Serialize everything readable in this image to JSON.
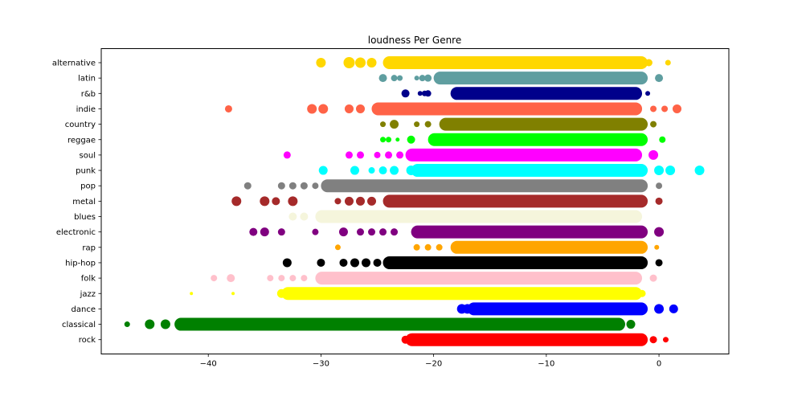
{
  "chart_data": {
    "type": "scatter",
    "title": "loudness Per Genre",
    "xlabel": "",
    "ylabel": "",
    "xlim": [
      -49.5,
      6.2
    ],
    "xticks": [
      -40,
      -30,
      -20,
      -10,
      0
    ],
    "xtick_labels": [
      "−40",
      "−30",
      "−20",
      "−10",
      "0"
    ],
    "grid": false,
    "categories": [
      "alternative",
      "latin",
      "r&b",
      "indie",
      "country",
      "reggae",
      "soul",
      "punk",
      "pop",
      "metal",
      "blues",
      "electronic",
      "rap",
      "hip-hop",
      "folk",
      "jazz",
      "dance",
      "classical",
      "rock"
    ],
    "series": [
      {
        "category": "alternative",
        "color": "#ffd700",
        "band": [
          -24.5,
          -1.0
        ],
        "points": [
          [
            -30.0,
            12
          ],
          [
            -27.5,
            14
          ],
          [
            -26.5,
            13
          ],
          [
            -25.5,
            12
          ],
          [
            -24.0,
            12
          ],
          [
            -23.0,
            11
          ],
          [
            -22.0,
            11
          ],
          [
            -21.0,
            11
          ],
          [
            -20.5,
            10
          ],
          [
            -20.0,
            10
          ],
          [
            -0.9,
            9
          ],
          [
            0.8,
            7
          ]
        ]
      },
      {
        "category": "latin",
        "color": "#5f9ea0",
        "band": [
          -20.0,
          -1.0
        ],
        "points": [
          [
            -24.5,
            10
          ],
          [
            -23.5,
            8
          ],
          [
            -23.0,
            7
          ],
          [
            -21.5,
            6
          ],
          [
            -21.0,
            8
          ],
          [
            -20.5,
            9
          ],
          [
            0.0,
            10
          ]
        ]
      },
      {
        "category": "r&b",
        "color": "#00008b",
        "band": [
          -18.5,
          -1.5
        ],
        "points": [
          [
            -22.5,
            10
          ],
          [
            -21.2,
            6
          ],
          [
            -20.8,
            7
          ],
          [
            -20.5,
            8
          ],
          [
            -1.0,
            6
          ]
        ]
      },
      {
        "category": "indie",
        "color": "#ff6347",
        "band": [
          -25.5,
          -1.5
        ],
        "points": [
          [
            -38.2,
            9
          ],
          [
            -30.8,
            12
          ],
          [
            -29.8,
            12
          ],
          [
            -27.5,
            11
          ],
          [
            -26.5,
            11
          ],
          [
            -0.5,
            8
          ],
          [
            0.5,
            8
          ],
          [
            1.6,
            11
          ]
        ]
      },
      {
        "category": "country",
        "color": "#808000",
        "band": [
          -19.5,
          -1.0
        ],
        "points": [
          [
            -24.5,
            7
          ],
          [
            -23.5,
            11
          ],
          [
            -21.5,
            7
          ],
          [
            -20.5,
            8
          ],
          [
            -0.5,
            8
          ]
        ]
      },
      {
        "category": "reggae",
        "color": "#00ff00",
        "band": [
          -20.5,
          -1.0
        ],
        "points": [
          [
            -24.5,
            7
          ],
          [
            -24.0,
            7
          ],
          [
            -23.2,
            5
          ],
          [
            -22.0,
            10
          ],
          [
            -20.0,
            8
          ],
          [
            0.3,
            8
          ]
        ]
      },
      {
        "category": "soul",
        "color": "#ff00ff",
        "band": [
          -22.5,
          -1.5
        ],
        "points": [
          [
            -33.0,
            9
          ],
          [
            -27.5,
            9
          ],
          [
            -26.5,
            9
          ],
          [
            -25.0,
            8
          ],
          [
            -24.0,
            9
          ],
          [
            -23.0,
            9
          ],
          [
            -0.5,
            12
          ]
        ]
      },
      {
        "category": "punk",
        "color": "#00ffff",
        "band": [
          -22.0,
          -1.0
        ],
        "points": [
          [
            -29.8,
            11
          ],
          [
            -27.0,
            11
          ],
          [
            -25.5,
            8
          ],
          [
            -24.5,
            10
          ],
          [
            -23.5,
            11
          ],
          [
            -22.0,
            12
          ],
          [
            0.0,
            12
          ],
          [
            1.0,
            12
          ],
          [
            3.6,
            12
          ]
        ]
      },
      {
        "category": "pop",
        "color": "#808080",
        "band": [
          -30.0,
          -1.0
        ],
        "points": [
          [
            -36.5,
            9
          ],
          [
            -33.5,
            9
          ],
          [
            -32.5,
            9
          ],
          [
            -31.5,
            9
          ],
          [
            -30.5,
            8
          ],
          [
            0.0,
            8
          ]
        ]
      },
      {
        "category": "metal",
        "color": "#a52a2a",
        "band": [
          -24.5,
          -1.0
        ],
        "points": [
          [
            -37.5,
            12
          ],
          [
            -35.0,
            12
          ],
          [
            -34.0,
            10
          ],
          [
            -32.5,
            12
          ],
          [
            -28.5,
            8
          ],
          [
            -27.5,
            11
          ],
          [
            -26.5,
            11
          ],
          [
            -25.5,
            11
          ],
          [
            0.0,
            9
          ]
        ]
      },
      {
        "category": "blues",
        "color": "#f5f5dc",
        "band": [
          -30.5,
          -1.5
        ],
        "points": [
          [
            -32.5,
            10
          ],
          [
            -31.5,
            10
          ]
        ]
      },
      {
        "category": "electronic",
        "color": "#800080",
        "band": [
          -22.0,
          -1.0
        ],
        "points": [
          [
            -36.0,
            10
          ],
          [
            -35.0,
            11
          ],
          [
            -33.5,
            9
          ],
          [
            -30.5,
            8
          ],
          [
            -28.0,
            11
          ],
          [
            -26.5,
            9
          ],
          [
            -25.5,
            9
          ],
          [
            -24.5,
            9
          ],
          [
            -23.5,
            9
          ],
          [
            0.0,
            12
          ]
        ]
      },
      {
        "category": "rap",
        "color": "#ffa500",
        "band": [
          -18.5,
          -1.0
        ],
        "points": [
          [
            -28.5,
            7
          ],
          [
            -21.5,
            8
          ],
          [
            -20.5,
            8
          ],
          [
            -19.5,
            8
          ],
          [
            -0.2,
            6
          ]
        ]
      },
      {
        "category": "hip-hop",
        "color": "#000000",
        "band": [
          -24.5,
          -1.0
        ],
        "points": [
          [
            -33.0,
            11
          ],
          [
            -30.0,
            10
          ],
          [
            -28.0,
            10
          ],
          [
            -27.0,
            11
          ],
          [
            -26.0,
            11
          ],
          [
            -25.0,
            10
          ],
          [
            0.0,
            9
          ]
        ]
      },
      {
        "category": "folk",
        "color": "#ffc0cb",
        "band": [
          -30.5,
          -1.5
        ],
        "points": [
          [
            -39.5,
            8
          ],
          [
            -38.0,
            10
          ],
          [
            -34.5,
            8
          ],
          [
            -33.5,
            8
          ],
          [
            -32.5,
            8
          ],
          [
            -31.5,
            8
          ],
          [
            -0.5,
            9
          ]
        ]
      },
      {
        "category": "jazz",
        "color": "#ffff00",
        "band": [
          -33.5,
          -1.5
        ],
        "points": [
          [
            -41.5,
            4
          ],
          [
            -37.8,
            4
          ],
          [
            -33.5,
            11
          ],
          [
            -32.5,
            10
          ],
          [
            -1.5,
            9
          ]
        ]
      },
      {
        "category": "dance",
        "color": "#0000ff",
        "band": [
          -17.0,
          -1.0
        ],
        "points": [
          [
            -17.5,
            12
          ],
          [
            -17.0,
            12
          ],
          [
            -16.0,
            11
          ],
          [
            0.0,
            12
          ],
          [
            1.3,
            11
          ]
        ]
      },
      {
        "category": "classical",
        "color": "#008000",
        "band": [
          -43.0,
          -3.0
        ],
        "points": [
          [
            -47.2,
            7
          ],
          [
            -45.2,
            12
          ],
          [
            -43.8,
            12
          ],
          [
            -42.0,
            12
          ],
          [
            -40.5,
            11
          ],
          [
            -2.5,
            11
          ]
        ]
      },
      {
        "category": "rock",
        "color": "#ff0000",
        "band": [
          -22.5,
          -1.0
        ],
        "points": [
          [
            -22.5,
            10
          ],
          [
            -21.5,
            11
          ],
          [
            -20.5,
            10
          ],
          [
            -0.5,
            9
          ],
          [
            0.6,
            7
          ]
        ]
      }
    ]
  }
}
